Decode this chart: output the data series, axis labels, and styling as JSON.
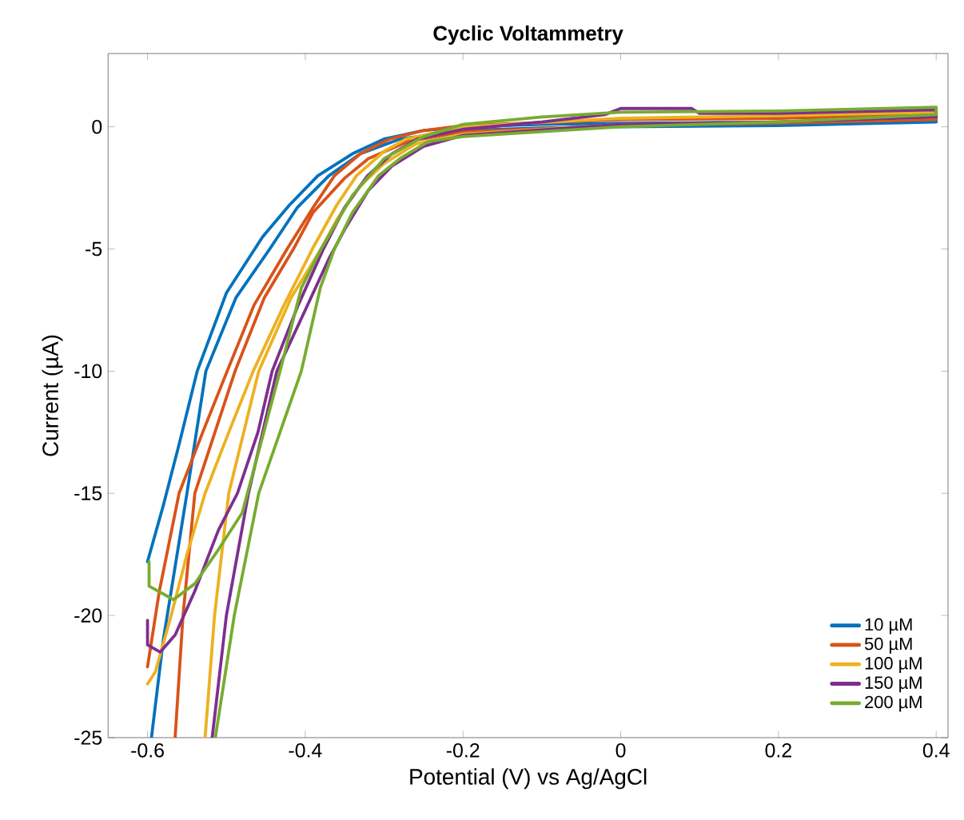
{
  "chart_data": {
    "type": "line",
    "title": "Cyclic Voltammetry",
    "xlabel": "Potential (V) vs Ag/AgCl",
    "ylabel": "Current (µA)",
    "xlim": [
      -0.65,
      0.415
    ],
    "ylim": [
      -25,
      3
    ],
    "xticks": [
      -0.6,
      -0.4,
      -0.2,
      0,
      0.2,
      0.4
    ],
    "yticks": [
      -25,
      -20,
      -15,
      -10,
      -5,
      0
    ],
    "legend": "bottom right",
    "grid": false,
    "marker": "none",
    "line_style": "solid",
    "series": [
      {
        "name": "10 µM",
        "color": "#0072bd",
        "x": [
          -0.6,
          -0.58,
          -0.56,
          -0.537,
          -0.5,
          -0.454,
          -0.42,
          -0.384,
          -0.34,
          -0.3,
          -0.25,
          -0.2,
          -0.1,
          0,
          0.2,
          0.4,
          0.4,
          0.2,
          0,
          -0.1,
          -0.2,
          -0.28,
          -0.33,
          -0.37,
          -0.41,
          -0.445,
          -0.488,
          -0.526,
          -0.55,
          -0.58,
          -0.595
        ],
        "values": [
          -17.8,
          -15.5,
          -13,
          -10,
          -6.8,
          -4.5,
          -3.2,
          -2,
          -1.1,
          -0.5,
          -0.15,
          0,
          0.1,
          0.15,
          0.2,
          0.35,
          0.2,
          0.05,
          0,
          -0.05,
          -0.15,
          -0.5,
          -1.1,
          -2,
          -3.3,
          -5,
          -7,
          -10,
          -15,
          -21,
          -25
        ]
      },
      {
        "name": "50 µM",
        "color": "#d95319",
        "x": [
          -0.6,
          -0.585,
          -0.56,
          -0.53,
          -0.499,
          -0.465,
          -0.423,
          -0.39,
          -0.363,
          -0.33,
          -0.293,
          -0.25,
          -0.2,
          0,
          0.2,
          0.4,
          0.4,
          0.2,
          0,
          -0.2,
          -0.27,
          -0.32,
          -0.35,
          -0.39,
          -0.415,
          -0.452,
          -0.489,
          -0.54,
          -0.555,
          -0.565
        ],
        "values": [
          -22.1,
          -19,
          -15,
          -12.5,
          -10,
          -7.3,
          -5,
          -3.3,
          -2,
          -1.1,
          -0.5,
          -0.15,
          0.05,
          0.3,
          0.35,
          0.5,
          0.3,
          0.15,
          0.05,
          -0.2,
          -0.6,
          -1.3,
          -2.1,
          -3.5,
          -5,
          -7,
          -10,
          -15,
          -20,
          -25
        ]
      },
      {
        "name": "100 µM",
        "color": "#edb120",
        "x": [
          -0.6,
          -0.59,
          -0.57,
          -0.55,
          -0.527,
          -0.497,
          -0.466,
          -0.427,
          -0.391,
          -0.36,
          -0.335,
          -0.3,
          -0.272,
          -0.2,
          0,
          0.2,
          0.4,
          0.4,
          0.2,
          0,
          -0.2,
          -0.26,
          -0.3,
          -0.33,
          -0.36,
          -0.38,
          -0.418,
          -0.459,
          -0.497,
          -0.515,
          -0.527
        ],
        "values": [
          -22.8,
          -22.3,
          -20,
          -17.5,
          -15,
          -12.5,
          -10,
          -7.3,
          -5,
          -3.2,
          -2,
          -1,
          -0.5,
          0,
          0.35,
          0.45,
          0.6,
          0.4,
          0.2,
          0.1,
          -0.3,
          -0.7,
          -1.5,
          -2.4,
          -3.8,
          -5,
          -7,
          -10,
          -15,
          -20,
          -25
        ]
      },
      {
        "name": "150 µM",
        "color": "#7e2f8e",
        "x": [
          -0.6,
          -0.6,
          -0.584,
          -0.565,
          -0.54,
          -0.51,
          -0.486,
          -0.46,
          -0.442,
          -0.409,
          -0.377,
          -0.35,
          -0.321,
          -0.29,
          -0.258,
          -0.2,
          -0.1,
          -0.02,
          0,
          0.09,
          0.1,
          0.2,
          0.4,
          0.4,
          0.2,
          0,
          -0.2,
          -0.25,
          -0.29,
          -0.32,
          -0.35,
          -0.37,
          -0.4,
          -0.436,
          -0.472,
          -0.5,
          -0.518
        ],
        "values": [
          -20.2,
          -21.2,
          -21.5,
          -20.8,
          -19,
          -16.5,
          -15,
          -12.5,
          -10,
          -7.3,
          -5,
          -3.3,
          -2,
          -1.1,
          -0.5,
          -0.1,
          0.2,
          0.5,
          0.75,
          0.75,
          0.55,
          0.55,
          0.7,
          0.4,
          0.2,
          0.1,
          -0.35,
          -0.8,
          -1.6,
          -2.6,
          -4.2,
          -5.4,
          -7.5,
          -10,
          -15,
          -20,
          -25
        ]
      },
      {
        "name": "200 µM",
        "color": "#77ac30",
        "x": [
          -0.598,
          -0.598,
          -0.567,
          -0.54,
          -0.51,
          -0.48,
          -0.455,
          -0.432,
          -0.405,
          -0.38,
          -0.34,
          -0.3,
          -0.25,
          -0.2,
          -0.1,
          0,
          0.2,
          0.4,
          0.4,
          0.2,
          0,
          -0.2,
          -0.244,
          -0.28,
          -0.307,
          -0.34,
          -0.363,
          -0.381,
          -0.405,
          -0.459,
          -0.49,
          -0.514
        ],
        "values": [
          -17.8,
          -18.8,
          -19.35,
          -18.7,
          -17.3,
          -15.8,
          -12.8,
          -10,
          -6.6,
          -5,
          -2.8,
          -1.3,
          -0.4,
          0.1,
          0.4,
          0.6,
          0.65,
          0.8,
          0.5,
          0.2,
          0,
          -0.4,
          -0.6,
          -1.3,
          -2,
          -3.5,
          -5,
          -6.6,
          -10,
          -15,
          -20,
          -25
        ]
      }
    ]
  }
}
